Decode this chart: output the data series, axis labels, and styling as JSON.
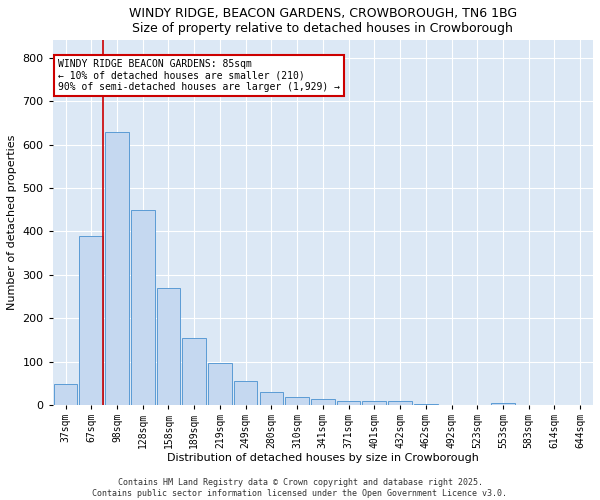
{
  "title1": "WINDY RIDGE, BEACON GARDENS, CROWBOROUGH, TN6 1BG",
  "title2": "Size of property relative to detached houses in Crowborough",
  "xlabel": "Distribution of detached houses by size in Crowborough",
  "ylabel": "Number of detached properties",
  "categories": [
    "37sqm",
    "67sqm",
    "98sqm",
    "128sqm",
    "158sqm",
    "189sqm",
    "219sqm",
    "249sqm",
    "280sqm",
    "310sqm",
    "341sqm",
    "371sqm",
    "401sqm",
    "432sqm",
    "462sqm",
    "492sqm",
    "523sqm",
    "553sqm",
    "583sqm",
    "614sqm",
    "644sqm"
  ],
  "values": [
    50,
    390,
    630,
    450,
    270,
    155,
    97,
    57,
    30,
    20,
    15,
    10,
    10,
    10,
    3,
    0,
    0,
    5,
    0,
    0,
    0
  ],
  "bar_color": "#c5d8f0",
  "bar_edge_color": "#5b9bd5",
  "vline_color": "#cc0000",
  "annotation_text": "WINDY RIDGE BEACON GARDENS: 85sqm\n← 10% of detached houses are smaller (210)\n90% of semi-detached houses are larger (1,929) →",
  "annotation_box_color": "#ffffff",
  "annotation_box_edge_color": "#cc0000",
  "background_color": "#dce8f5",
  "footer_text": "Contains HM Land Registry data © Crown copyright and database right 2025.\nContains public sector information licensed under the Open Government Licence v3.0.",
  "ylim": [
    0,
    840
  ],
  "yticks": [
    0,
    100,
    200,
    300,
    400,
    500,
    600,
    700,
    800
  ],
  "title_fontsize": 9,
  "axis_label_fontsize": 8,
  "tick_fontsize": 7,
  "footer_fontsize": 6,
  "annotation_fontsize": 7
}
